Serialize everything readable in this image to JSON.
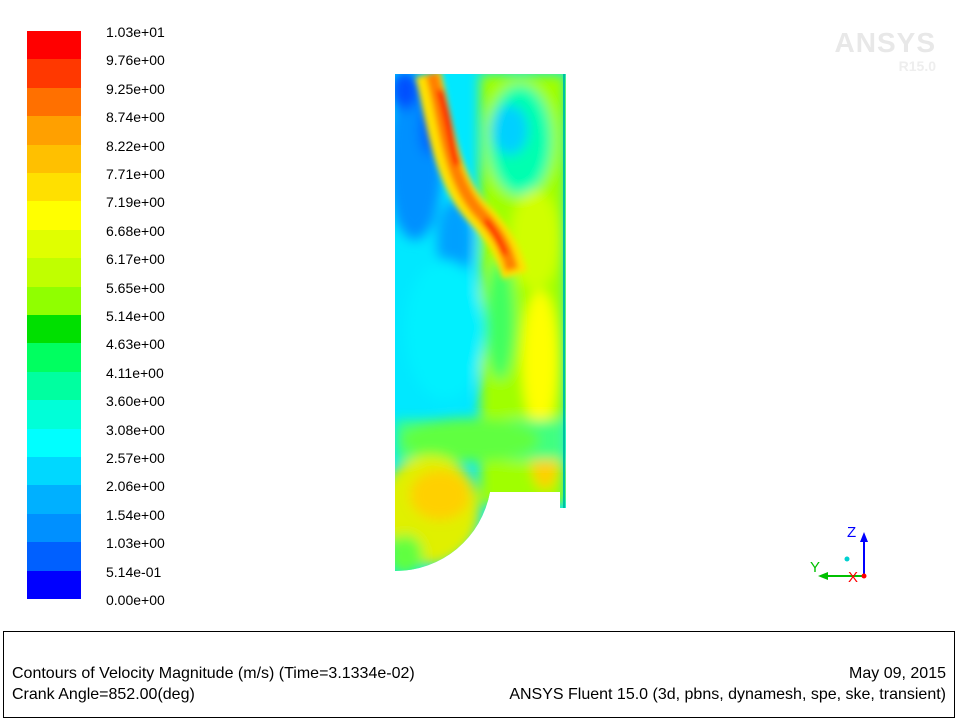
{
  "colorbar": {
    "labels": [
      "1.03e+01",
      "9.76e+00",
      "9.25e+00",
      "8.74e+00",
      "8.22e+00",
      "7.71e+00",
      "7.19e+00",
      "6.68e+00",
      "6.17e+00",
      "5.65e+00",
      "5.14e+00",
      "4.63e+00",
      "4.11e+00",
      "3.60e+00",
      "3.08e+00",
      "2.57e+00",
      "2.06e+00",
      "1.54e+00",
      "1.03e+00",
      "5.14e-01",
      "0.00e+00"
    ],
    "colors": [
      "#ff0000",
      "#ff3800",
      "#ff7000",
      "#ffa000",
      "#ffc000",
      "#ffe000",
      "#ffff00",
      "#e0ff00",
      "#c0ff00",
      "#90ff00",
      "#00e000",
      "#00ff60",
      "#00ffa0",
      "#00ffd8",
      "#00ffff",
      "#00d8ff",
      "#00b0ff",
      "#0090ff",
      "#0060ff",
      "#0000ff"
    ]
  },
  "watermark": {
    "name": "ANSYS",
    "version": "R15.0"
  },
  "axes": {
    "z": "Z",
    "y": "Y",
    "x": "X"
  },
  "footer": {
    "title": "Contours of Velocity Magnitude (m/s)  (Time=3.1334e-02)",
    "crank": "Crank Angle=852.00(deg)",
    "date": "May 09, 2015",
    "solver": "ANSYS Fluent 15.0 (3d, pbns, dynamesh, spe, ske, transient)"
  }
}
